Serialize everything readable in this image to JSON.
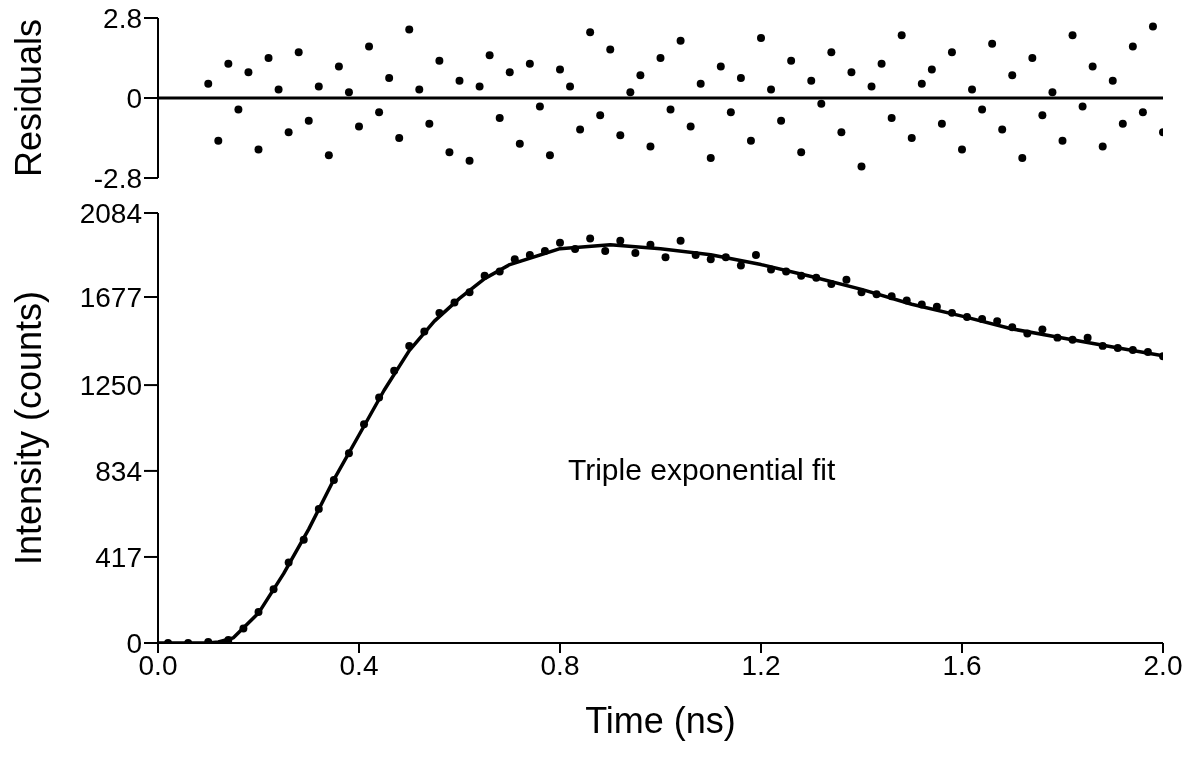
{
  "chart_data": [
    {
      "type": "scatter",
      "ylabel": "Residuals",
      "xlim": [
        0,
        2
      ],
      "ylim": [
        -2.8,
        2.8
      ],
      "yticks": [
        2.8,
        0,
        -2.8
      ],
      "tick_labels": "y",
      "marker": "circle",
      "ref_lines": [
        {
          "axis": "y",
          "value": 0,
          "color": "#000000"
        }
      ],
      "series": [
        {
          "color": "#000000",
          "x": [
            0.1,
            0.12,
            0.14,
            0.16,
            0.18,
            0.2,
            0.22,
            0.24,
            0.26,
            0.28,
            0.3,
            0.32,
            0.34,
            0.36,
            0.38,
            0.4,
            0.42,
            0.44,
            0.46,
            0.48,
            0.5,
            0.52,
            0.54,
            0.56,
            0.58,
            0.6,
            0.62,
            0.64,
            0.66,
            0.68,
            0.7,
            0.72,
            0.74,
            0.76,
            0.78,
            0.8,
            0.82,
            0.84,
            0.86,
            0.88,
            0.9,
            0.92,
            0.94,
            0.96,
            0.98,
            1.0,
            1.02,
            1.04,
            1.06,
            1.08,
            1.1,
            1.12,
            1.14,
            1.16,
            1.18,
            1.2,
            1.22,
            1.24,
            1.26,
            1.28,
            1.3,
            1.32,
            1.34,
            1.36,
            1.38,
            1.4,
            1.42,
            1.44,
            1.46,
            1.48,
            1.5,
            1.52,
            1.54,
            1.56,
            1.58,
            1.6,
            1.62,
            1.64,
            1.66,
            1.68,
            1.7,
            1.72,
            1.74,
            1.76,
            1.78,
            1.8,
            1.82,
            1.84,
            1.86,
            1.88,
            1.9,
            1.92,
            1.94,
            1.96,
            1.98,
            2.0
          ],
          "values": [
            0.5,
            -1.5,
            1.2,
            -0.4,
            0.9,
            -1.8,
            1.4,
            0.3,
            -1.2,
            1.6,
            -0.8,
            0.4,
            -2.0,
            1.1,
            0.2,
            -1.0,
            1.8,
            -0.5,
            0.7,
            -1.4,
            2.4,
            0.3,
            -0.9,
            1.3,
            -1.9,
            0.6,
            -2.2,
            0.4,
            1.5,
            -0.7,
            0.9,
            -1.6,
            1.2,
            -0.3,
            -2.0,
            1.0,
            0.4,
            -1.1,
            2.3,
            -0.6,
            1.7,
            -1.3,
            0.2,
            0.8,
            -1.7,
            1.4,
            -0.4,
            2.0,
            -1.0,
            0.5,
            -2.1,
            1.1,
            -0.5,
            0.7,
            -1.5,
            2.1,
            0.3,
            -0.8,
            1.3,
            -1.9,
            0.6,
            -0.2,
            1.6,
            -1.2,
            0.9,
            -2.4,
            0.4,
            1.2,
            -0.7,
            2.2,
            -1.4,
            0.5,
            1.0,
            -0.9,
            1.6,
            -1.8,
            0.3,
            -0.4,
            1.9,
            -1.1,
            0.8,
            -2.1,
            1.4,
            -0.6,
            0.2,
            -1.5,
            2.2,
            -0.3,
            1.1,
            -1.7,
            0.6,
            -0.9,
            1.8,
            -0.5,
            2.5,
            -1.2
          ]
        }
      ]
    },
    {
      "type": "scatter",
      "xlabel": "Time  (ns)",
      "ylabel": "Intensity (counts)",
      "xlim": [
        0,
        2
      ],
      "ylim": [
        0,
        2084
      ],
      "xticks": [
        {
          "value": 0,
          "label": "0.0"
        },
        {
          "value": 0.4,
          "label": "0.4"
        },
        {
          "value": 0.8,
          "label": "0.8"
        },
        {
          "value": 1.2,
          "label": "1.2"
        },
        {
          "value": 1.6,
          "label": "1.6"
        },
        {
          "value": 2,
          "label": "2.0"
        }
      ],
      "yticks": [
        0,
        417,
        834,
        1250,
        1677,
        2084
      ],
      "marker": "circle",
      "annotations": [
        "Triple exponential fit"
      ],
      "series": [
        {
          "color": "#000000",
          "x": [
            0.02,
            0.06,
            0.1,
            0.14,
            0.17,
            0.2,
            0.23,
            0.26,
            0.29,
            0.32,
            0.35,
            0.38,
            0.41,
            0.44,
            0.47,
            0.5,
            0.53,
            0.56,
            0.59,
            0.62,
            0.65,
            0.68,
            0.71,
            0.74,
            0.77,
            0.8,
            0.83,
            0.86,
            0.89,
            0.92,
            0.95,
            0.98,
            1.01,
            1.04,
            1.07,
            1.1,
            1.13,
            1.16,
            1.19,
            1.22,
            1.25,
            1.28,
            1.31,
            1.34,
            1.37,
            1.4,
            1.43,
            1.46,
            1.49,
            1.52,
            1.55,
            1.58,
            1.61,
            1.64,
            1.67,
            1.7,
            1.73,
            1.76,
            1.79,
            1.82,
            1.85,
            1.88,
            1.91,
            1.94,
            1.97,
            2.0
          ],
          "values": [
            0,
            0,
            5,
            15,
            70,
            150,
            260,
            390,
            500,
            650,
            790,
            920,
            1060,
            1190,
            1320,
            1440,
            1510,
            1600,
            1650,
            1700,
            1780,
            1800,
            1860,
            1880,
            1900,
            1940,
            1910,
            1960,
            1900,
            1950,
            1890,
            1930,
            1870,
            1950,
            1880,
            1860,
            1870,
            1830,
            1880,
            1810,
            1800,
            1780,
            1770,
            1740,
            1760,
            1700,
            1690,
            1680,
            1660,
            1640,
            1630,
            1600,
            1580,
            1570,
            1560,
            1530,
            1500,
            1520,
            1480,
            1470,
            1480,
            1440,
            1430,
            1420,
            1410,
            1390
          ]
        },
        {
          "type": "line",
          "color": "#000000",
          "line_style": "solid",
          "marker": "none",
          "x": [
            0,
            0.1,
            0.12,
            0.15,
            0.2,
            0.25,
            0.3,
            0.35,
            0.4,
            0.45,
            0.5,
            0.55,
            0.6,
            0.65,
            0.7,
            0.8,
            0.9,
            1.0,
            1.1,
            1.2,
            1.3,
            1.4,
            1.5,
            1.6,
            1.7,
            1.8,
            1.9,
            2.0
          ],
          "values": [
            0,
            0,
            5,
            25,
            145,
            336,
            552,
            792,
            1008,
            1225,
            1417,
            1560,
            1670,
            1766,
            1834,
            1911,
            1930,
            1911,
            1882,
            1834,
            1776,
            1714,
            1642,
            1584,
            1522,
            1478,
            1435,
            1392
          ]
        }
      ]
    }
  ]
}
